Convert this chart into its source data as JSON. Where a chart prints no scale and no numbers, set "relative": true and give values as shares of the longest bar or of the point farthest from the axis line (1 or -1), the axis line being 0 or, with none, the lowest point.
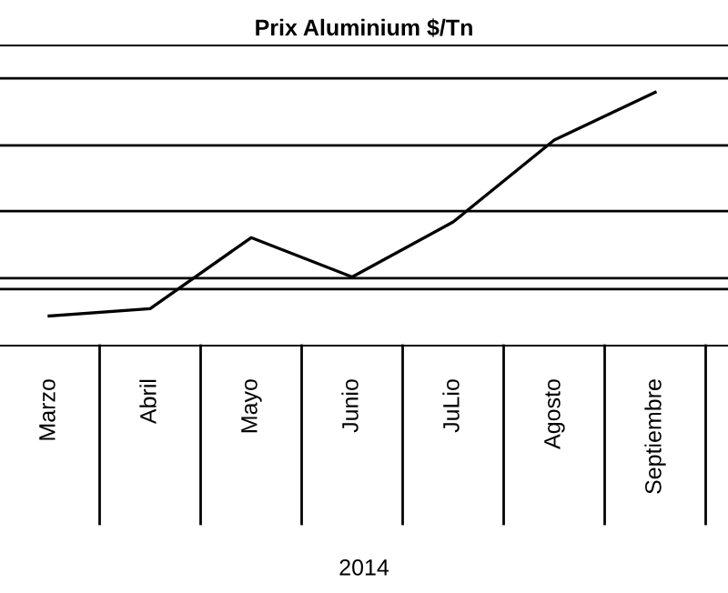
{
  "chart_data": {
    "type": "line",
    "title": "Prix Aluminium $/Tn",
    "xlabel": "2014",
    "categories": [
      null,
      "Marzo",
      "Abril",
      "Mayo",
      "Junio",
      "JuLio",
      "Agosto",
      "Septiembre",
      null
    ],
    "series": [
      {
        "color": "#000000",
        "values": [
          null,
          0.117,
          0.146,
          0.426,
          0.271,
          0.488,
          0.811,
          1,
          null
        ]
      }
    ],
    "relative": true,
    "ref_lines": [
      {
        "axis": "y",
        "value": 1.055,
        "color": "#000000"
      },
      {
        "axis": "y",
        "value": 0.79,
        "color": "#000000"
      },
      {
        "axis": "y",
        "value": 0.531,
        "color": "#000000"
      },
      {
        "axis": "y",
        "value": 0.266,
        "color": "#000000"
      },
      {
        "axis": "y",
        "value": 0.223,
        "color": "#000000"
      }
    ],
    "legend": false,
    "marker": "none",
    "line_style": "solid"
  }
}
